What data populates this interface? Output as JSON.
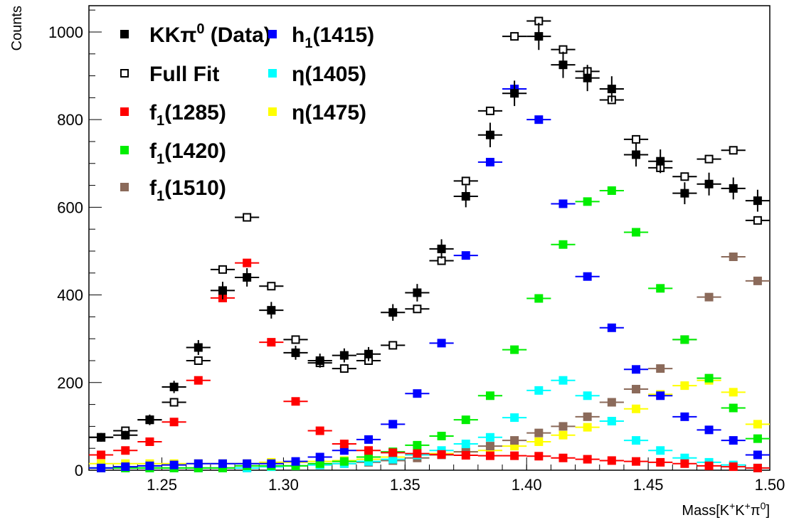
{
  "chart_data": {
    "type": "scatter",
    "xlabel_parts": [
      "Mass[K",
      "+",
      "K",
      "+",
      "π",
      "0",
      "]"
    ],
    "ylabel": "Counts",
    "xlim": [
      1.22,
      1.5
    ],
    "ylim": [
      0,
      1060
    ],
    "x_ticks": [
      1.25,
      1.3,
      1.35,
      1.4,
      1.45,
      1.5
    ],
    "x_tick_labels": [
      "1.25",
      "1.30",
      "1.35",
      "1.40",
      "1.45",
      "1.50"
    ],
    "y_ticks": [
      0,
      200,
      400,
      600,
      800,
      1000
    ],
    "y_tick_labels": [
      "0",
      "200",
      "400",
      "600",
      "800",
      "1000"
    ],
    "bin_width": 0.01,
    "x": [
      1.225,
      1.235,
      1.245,
      1.255,
      1.265,
      1.275,
      1.285,
      1.295,
      1.305,
      1.315,
      1.325,
      1.335,
      1.345,
      1.355,
      1.365,
      1.375,
      1.385,
      1.395,
      1.405,
      1.415,
      1.425,
      1.435,
      1.445,
      1.455,
      1.465,
      1.475,
      1.485,
      1.495
    ],
    "series": [
      {
        "name": "KKπ⁰ (Data)",
        "legend_base": "KKπ",
        "legend_sup": "0",
        "legend_suffix": " (Data)",
        "color": "#000000",
        "marker": "filled",
        "values": [
          75,
          80,
          115,
          190,
          280,
          410,
          440,
          365,
          268,
          250,
          262,
          265,
          360,
          405,
          505,
          625,
          765,
          860,
          990,
          925,
          895,
          870,
          720,
          705,
          632,
          653,
          643,
          615
        ],
        "errors": [
          10,
          10,
          12,
          14,
          17,
          20,
          21,
          19,
          16,
          16,
          16,
          16,
          19,
          20,
          22,
          25,
          28,
          29,
          31,
          30,
          30,
          29,
          27,
          27,
          25,
          26,
          25,
          25
        ]
      },
      {
        "name": "Full Fit",
        "legend_base": "Full Fit",
        "color": "#000000",
        "marker": "open",
        "values": [
          75,
          90,
          115,
          155,
          250,
          458,
          577,
          420,
          298,
          245,
          232,
          250,
          285,
          368,
          478,
          660,
          820,
          990,
          1025,
          960,
          910,
          845,
          755,
          690,
          670,
          710,
          730,
          570
        ]
      },
      {
        "name": "f1(1285)",
        "legend_base": "f",
        "legend_sub": "1",
        "legend_suffix": "(1285)",
        "color": "#ff0000",
        "marker": "filled",
        "values": [
          35,
          45,
          65,
          110,
          205,
          393,
          473,
          292,
          157,
          90,
          60,
          45,
          40,
          38,
          36,
          34,
          33,
          33,
          32,
          28,
          25,
          22,
          20,
          18,
          15,
          10,
          8,
          5
        ]
      },
      {
        "name": "h1(1415)",
        "legend_base": "h",
        "legend_sub": "1",
        "legend_suffix": "(1415)",
        "color": "#0000ff",
        "marker": "filled",
        "values": [
          5,
          8,
          10,
          12,
          15,
          15,
          15,
          15,
          20,
          30,
          45,
          70,
          105,
          175,
          290,
          490,
          703,
          870,
          800,
          608,
          442,
          325,
          230,
          170,
          122,
          92,
          68,
          35
        ]
      },
      {
        "name": "f1(1420)",
        "legend_base": "f",
        "legend_sub": "1",
        "legend_suffix": "(1420)",
        "color": "#00ee00",
        "marker": "filled",
        "values": [
          5,
          5,
          5,
          5,
          5,
          5,
          10,
          10,
          10,
          15,
          20,
          30,
          42,
          57,
          78,
          115,
          170,
          275,
          392,
          515,
          613,
          638,
          543,
          415,
          298,
          210,
          142,
          72
        ]
      },
      {
        "name": "η(1405)",
        "legend_base": "η",
        "legend_suffix": "(1405)",
        "color": "#00ffff",
        "marker": "filled",
        "values": [
          5,
          5,
          5,
          5,
          5,
          5,
          5,
          8,
          10,
          12,
          15,
          20,
          25,
          35,
          45,
          60,
          75,
          120,
          182,
          205,
          170,
          112,
          68,
          45,
          28,
          18,
          12,
          5
        ]
      },
      {
        "name": "f1(1510)",
        "legend_base": "f",
        "legend_sub": "1",
        "legend_suffix": "(1510)",
        "color": "#8b6a5a",
        "marker": "filled",
        "values": [
          5,
          5,
          5,
          5,
          5,
          5,
          5,
          8,
          10,
          12,
          15,
          18,
          22,
          28,
          35,
          42,
          55,
          68,
          85,
          100,
          122,
          155,
          185,
          232,
          298,
          395,
          487,
          432
        ]
      },
      {
        "name": "η(1475)",
        "legend_base": "η",
        "legend_suffix": "(1475)",
        "color": "#ffff00",
        "marker": "filled",
        "values": [
          15,
          15,
          15,
          15,
          15,
          15,
          15,
          18,
          18,
          20,
          22,
          25,
          30,
          35,
          38,
          42,
          45,
          55,
          65,
          80,
          98,
          112,
          140,
          173,
          193,
          205,
          178,
          105
        ]
      }
    ],
    "legend": {
      "position": "top-left",
      "columns": [
        [
          "KKπ⁰ (Data)",
          "Full Fit",
          "f1(1285)",
          "f1(1420)",
          "f1(1510)"
        ],
        [
          "h1(1415)",
          "η(1405)",
          "η(1475)"
        ]
      ]
    }
  }
}
